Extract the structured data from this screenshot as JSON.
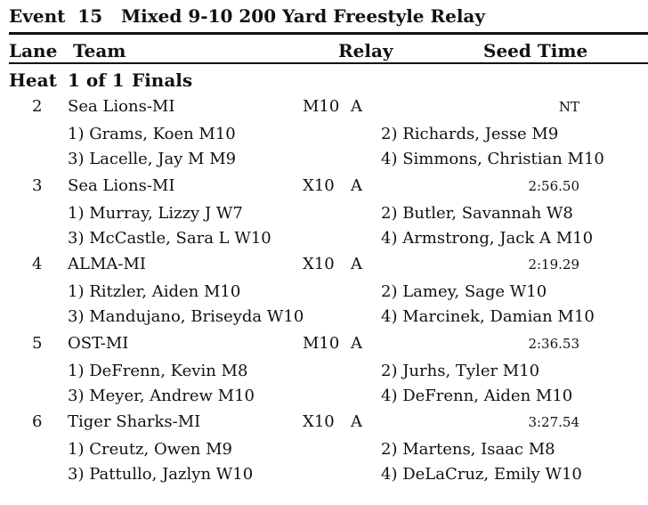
{
  "event": {
    "title": "Event  15   Mixed 9-10 200 Yard Freestyle Relay"
  },
  "columns": {
    "lane": "Lane",
    "team": "Team",
    "relay": "Relay",
    "seed": "Seed Time"
  },
  "heat": {
    "label": "Heat",
    "of": "1 of 1",
    "round": "Finals"
  },
  "entries": [
    {
      "lane": "2",
      "team": "Sea Lions-MI",
      "relay_code": "M10",
      "relay_letter": "A",
      "seed": "NT",
      "swimmers": [
        "1) Grams, Koen M10",
        "2) Richards, Jesse M9",
        "3) Lacelle, Jay M M9",
        "4) Simmons, Christian M10"
      ]
    },
    {
      "lane": "3",
      "team": "Sea Lions-MI",
      "relay_code": "X10",
      "relay_letter": "A",
      "seed": "2:56.50",
      "swimmers": [
        "1) Murray, Lizzy J W7",
        "2) Butler, Savannah W8",
        "3) McCastle, Sara L W10",
        "4) Armstrong, Jack A M10"
      ]
    },
    {
      "lane": "4",
      "team": "ALMA-MI",
      "relay_code": "X10",
      "relay_letter": "A",
      "seed": "2:19.29",
      "swimmers": [
        "1) Ritzler, Aiden M10",
        "2) Lamey, Sage W10",
        "3) Mandujano, Briseyda W10",
        "4) Marcinek, Damian M10"
      ]
    },
    {
      "lane": "5",
      "team": "OST-MI",
      "relay_code": "M10",
      "relay_letter": "A",
      "seed": "2:36.53",
      "swimmers": [
        "1) DeFrenn, Kevin M8",
        "2) Jurhs, Tyler M10",
        "3) Meyer, Andrew M10",
        "4) DeFrenn, Aiden M10"
      ]
    },
    {
      "lane": "6",
      "team": "Tiger Sharks-MI",
      "relay_code": "X10",
      "relay_letter": "A",
      "seed": "3:27.54",
      "swimmers": [
        "1) Creutz, Owen M9",
        "2) Martens, Isaac M8",
        "3) Pattullo, Jazlyn W10",
        "4) DeLaCruz, Emily W10"
      ]
    }
  ]
}
